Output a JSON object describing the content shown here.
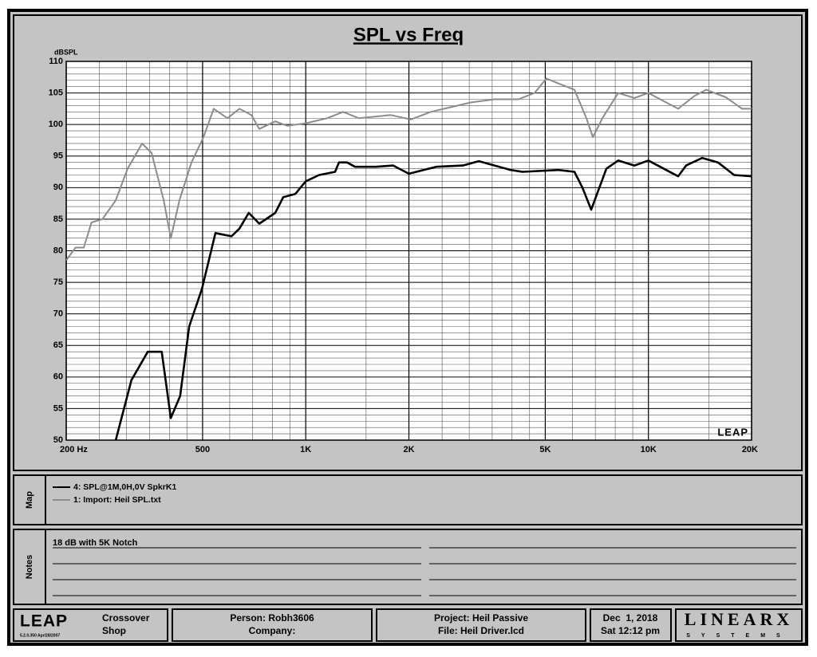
{
  "chart_data": {
    "type": "line",
    "title": "SPL vs Freq",
    "y_label": "dBSPL",
    "watermark": "LEAP",
    "xscale": "log",
    "grid": true,
    "xlim": [
      200,
      20000
    ],
    "xticks": [
      {
        "value": 200,
        "label": "200 Hz"
      },
      500,
      {
        "value": 1000,
        "label": "1K"
      },
      {
        "value": 2000,
        "label": "2K"
      },
      {
        "value": 5000,
        "label": "5K"
      },
      {
        "value": 10000,
        "label": "10K"
      },
      {
        "value": 20000,
        "label": "20K"
      }
    ],
    "xminor": [
      250,
      300,
      350,
      400,
      450,
      600,
      700,
      800,
      900,
      1500,
      2500,
      3000,
      3500,
      4000,
      4500,
      6000,
      7000,
      8000,
      9000,
      15000
    ],
    "ylim": [
      50,
      110
    ],
    "yticks": [
      50,
      55,
      60,
      65,
      70,
      75,
      80,
      85,
      90,
      95,
      100,
      105,
      110
    ],
    "yminor": [
      51,
      52,
      53,
      54,
      56,
      57,
      58,
      59,
      61,
      62,
      63,
      64,
      66,
      67,
      68,
      69,
      71,
      72,
      73,
      74,
      76,
      77,
      78,
      79,
      81,
      82,
      83,
      84,
      86,
      87,
      88,
      89,
      91,
      92,
      93,
      94,
      96,
      97,
      98,
      99,
      101,
      102,
      103,
      104,
      106,
      107,
      108,
      109
    ],
    "series": [
      {
        "name": "4: SPL@1M,0H,0V SpkrK1",
        "color": "#000000",
        "x": [
          279,
          310,
          346,
          380,
          404,
          430,
          457,
          498,
          545,
          607,
          640,
          682,
          732,
          815,
          860,
          932,
          1000,
          1094,
          1218,
          1250,
          1320,
          1393,
          1600,
          1800,
          2000,
          2400,
          2872,
          3200,
          3963,
          4290,
          5466,
          6084,
          6420,
          6810,
          7540,
          8160,
          9100,
          10000,
          11270,
          12210,
          12880,
          14350,
          15960,
          17780,
          20000
        ],
        "values": [
          50,
          59.5,
          64,
          64,
          53.5,
          57,
          68,
          74,
          82.8,
          82.3,
          83.5,
          86,
          84.3,
          86,
          88.5,
          89,
          91,
          92,
          92.5,
          94,
          94,
          93.3,
          93.3,
          93.5,
          92.2,
          93.3,
          93.5,
          94.2,
          92.8,
          92.5,
          92.8,
          92.5,
          90,
          86.5,
          93,
          94.3,
          93.5,
          94.3,
          92.8,
          91.8,
          93.5,
          94.7,
          94,
          92,
          91.8
        ]
      },
      {
        "name": "1: Import: Heil SPL.txt",
        "color": "#8c8c8c",
        "x": [
          200,
          213,
          225,
          237,
          255,
          279,
          302,
          333,
          355,
          385,
          404,
          428,
          464,
          503,
          539,
          591,
          640,
          694,
          732,
          815,
          883,
          1000,
          1154,
          1285,
          1430,
          1772,
          2027,
          2318,
          3030,
          3560,
          4180,
          4654,
          5040,
          5466,
          6084,
          6594,
          6884,
          7338,
          8160,
          9100,
          10000,
          11270,
          12210,
          13600,
          14730,
          16850,
          18760,
          20000
        ],
        "values": [
          78.5,
          80.5,
          80.5,
          84.5,
          85,
          88,
          93,
          97,
          95.5,
          88,
          82,
          88,
          94,
          98,
          102.5,
          101,
          102.5,
          101.5,
          99.3,
          100.5,
          99.8,
          100.2,
          101,
          102,
          101,
          101.5,
          100.8,
          102,
          103.5,
          104,
          104,
          105,
          107.3,
          106.5,
          105.5,
          101,
          98,
          101,
          105,
          104.2,
          105,
          103.5,
          102.5,
          104.5,
          105.5,
          104.3,
          102.5,
          102.5
        ]
      }
    ]
  },
  "map": {
    "label": "Map"
  },
  "notes": {
    "label": "Notes",
    "lines": [
      "18 dB with 5K Notch"
    ]
  },
  "footer": {
    "logo": "LEAP",
    "version": "5.2.0.350  Apr/28/2007",
    "app": [
      "Crossover",
      "Shop"
    ],
    "person": "Person: Robh3606",
    "company": "Company:",
    "project": "Project: Heil Passive",
    "file": "File: Heil Driver.lcd",
    "date": "Dec  1, 2018",
    "time": "Sat 12:12 pm",
    "brand": "LINEARX",
    "brand_sub": "SYSTEMS"
  }
}
